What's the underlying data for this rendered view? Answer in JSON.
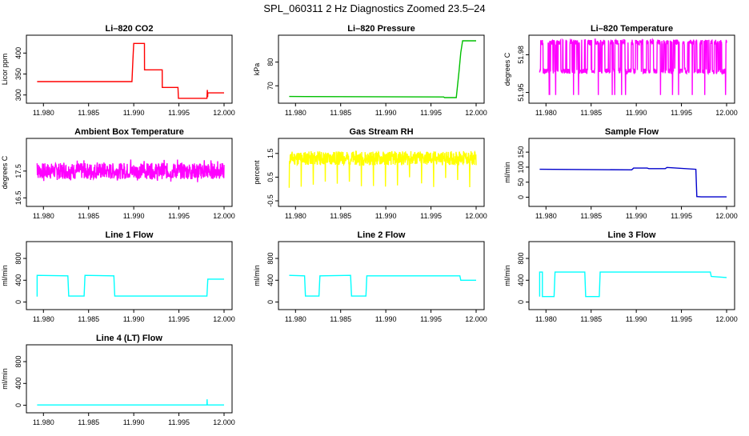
{
  "page_title": "SPL_060311  2 Hz Diagnostics Zoomed 23.5–24",
  "chart_data": [
    {
      "type": "line",
      "title": "Li–820 CO2",
      "ylabel": "Licor ppm",
      "color": "#ff0000",
      "xlim": [
        11.979,
        12.0
      ],
      "xticks": [
        "11.980",
        "11.985",
        "11.990",
        "11.995",
        "12.000"
      ],
      "ylim": [
        288,
        435
      ],
      "yticks": [
        300,
        350,
        400
      ],
      "x": [
        11.9793,
        11.9898,
        11.9899,
        11.99,
        11.99118,
        11.99119,
        11.9925,
        11.99315,
        11.99316,
        11.9949,
        11.99495,
        11.9981,
        11.99815,
        11.99818,
        11.9982,
        12.0
      ],
      "y": [
        332,
        332,
        380,
        423,
        423,
        360,
        360,
        360,
        318,
        318,
        292,
        292,
        312,
        295,
        305,
        305
      ]
    },
    {
      "type": "line",
      "title": "Li–820 Pressure",
      "ylabel": "kPa",
      "color": "#00c000",
      "xlim": [
        11.979,
        12.0
      ],
      "xticks": [
        "11.980",
        "11.985",
        "11.990",
        "11.995",
        "12.000"
      ],
      "ylim": [
        64,
        90
      ],
      "yticks": [
        70,
        80
      ],
      "x": [
        11.9793,
        11.9964,
        11.9965,
        11.9978,
        11.9981,
        11.9983,
        11.9985,
        12.0
      ],
      "y": [
        65.5,
        65.3,
        65.0,
        65.0,
        76.0,
        84.0,
        89.0,
        89.0
      ]
    },
    {
      "type": "line",
      "title": "Li–820 Temperature",
      "ylabel": "degrees C",
      "color": "#ff00ff",
      "xlim": [
        11.979,
        12.0
      ],
      "xticks": [
        "11.980",
        "11.985",
        "11.990",
        "11.995",
        "12.000"
      ],
      "ylim": [
        51.944,
        51.993
      ],
      "yticks": [
        51.95,
        51.98
      ],
      "x": [
        11.9793,
        12.0
      ],
      "y": [
        51.967,
        51.967
      ],
      "noise": {
        "seed": 3,
        "points": 900,
        "low": 51.948,
        "high": 51.99,
        "jitter": 0.004,
        "mode": "toggle"
      }
    },
    {
      "type": "line",
      "title": "Ambient Box Temperature",
      "ylabel": "degrees C",
      "color": "#ff00ff",
      "xlim": [
        11.979,
        12.0
      ],
      "xticks": [
        "11.980",
        "11.985",
        "11.990",
        "11.995",
        "12.000"
      ],
      "ylim": [
        16.3,
        18.6
      ],
      "yticks": [
        16.5,
        17.5
      ],
      "x": [
        11.9793,
        12.0
      ],
      "y": [
        17.5,
        17.5
      ],
      "noise": {
        "seed": 7,
        "points": 700,
        "amp": 0.3,
        "spike": 0.45,
        "spike_every": 25
      }
    },
    {
      "type": "line",
      "title": "Gas Stream RH",
      "ylabel": "percent",
      "color": "#ffff00",
      "xlim": [
        11.979,
        12.0
      ],
      "xticks": [
        "11.980",
        "11.985",
        "11.990",
        "11.995",
        "12.000"
      ],
      "ylim": [
        -0.6,
        2.0
      ],
      "yticks": [
        -0.5,
        0.5,
        1.5
      ],
      "x": [
        11.9793,
        12.0
      ],
      "y": [
        1.3,
        1.3
      ],
      "noise": {
        "seed": 11,
        "points": 700,
        "amp": 0.3,
        "spike": 1.3,
        "spike_every": 45,
        "spike_down": true
      }
    },
    {
      "type": "line",
      "title": "Sample Flow",
      "ylabel": "ml/min",
      "color": "#0000cc",
      "xlim": [
        11.979,
        12.0
      ],
      "xticks": [
        "11.980",
        "11.985",
        "11.990",
        "11.995",
        "12.000"
      ],
      "ylim": [
        -20,
        185
      ],
      "yticks": [
        0,
        50,
        100,
        150
      ],
      "x": [
        11.9793,
        11.9895,
        11.9897,
        11.9912,
        11.9914,
        11.9932,
        11.9934,
        11.9966,
        11.9967,
        11.9972,
        12.0
      ],
      "y": [
        93,
        91,
        97,
        97,
        95,
        95,
        99,
        93,
        2,
        1,
        1
      ]
    },
    {
      "type": "line",
      "title": "Line 1 Flow",
      "ylabel": "ml/min",
      "color": "#00ffff",
      "xlim": [
        11.979,
        12.0
      ],
      "xticks": [
        "11.980",
        "11.985",
        "11.990",
        "11.995",
        "12.000"
      ],
      "ylim": [
        -80,
        1050
      ],
      "yticks": [
        0,
        400,
        800
      ],
      "x": [
        11.9793,
        11.9793,
        11.9827,
        11.9828,
        11.9845,
        11.9846,
        11.9878,
        11.9879,
        11.9981,
        11.9982,
        12.0
      ],
      "y": [
        100,
        490,
        480,
        110,
        110,
        490,
        480,
        110,
        110,
        420,
        420
      ]
    },
    {
      "type": "line",
      "title": "Line 2 Flow",
      "ylabel": "ml/min",
      "color": "#00ffff",
      "xlim": [
        11.979,
        12.0
      ],
      "xticks": [
        "11.980",
        "11.985",
        "11.990",
        "11.995",
        "12.000"
      ],
      "ylim": [
        -80,
        1050
      ],
      "yticks": [
        0,
        400,
        800
      ],
      "x": [
        11.9793,
        11.981,
        11.9811,
        11.9826,
        11.9827,
        11.9861,
        11.9862,
        11.9878,
        11.9879,
        11.9982,
        11.9983,
        12.0
      ],
      "y": [
        490,
        480,
        110,
        110,
        480,
        490,
        110,
        110,
        480,
        480,
        400,
        400
      ]
    },
    {
      "type": "line",
      "title": "Line 3 Flow",
      "ylabel": "ml/min",
      "color": "#00ffff",
      "xlim": [
        11.979,
        12.0
      ],
      "xticks": [
        "11.980",
        "11.985",
        "11.990",
        "11.995",
        "12.000"
      ],
      "ylim": [
        -80,
        1050
      ],
      "yticks": [
        0,
        400,
        800
      ],
      "x": [
        11.9793,
        11.9793,
        11.9796,
        11.9796,
        11.9809,
        11.981,
        11.9843,
        11.9844,
        11.9859,
        11.986,
        11.9982,
        11.9983,
        12.0
      ],
      "y": [
        100,
        550,
        550,
        100,
        100,
        550,
        550,
        100,
        100,
        550,
        550,
        470,
        450
      ]
    },
    {
      "type": "line",
      "title": "Line 4 (LT) Flow",
      "ylabel": "ml/min",
      "color": "#00ffff",
      "xlim": [
        11.979,
        12.0
      ],
      "xticks": [
        "11.980",
        "11.985",
        "11.990",
        "11.995",
        "12.000"
      ],
      "ylim": [
        -80,
        1050
      ],
      "yticks": [
        0,
        400,
        800
      ],
      "x": [
        11.9793,
        11.9981,
        11.99812,
        11.99814,
        11.99818,
        12.0
      ],
      "y": [
        5,
        5,
        110,
        20,
        5,
        5
      ]
    }
  ]
}
